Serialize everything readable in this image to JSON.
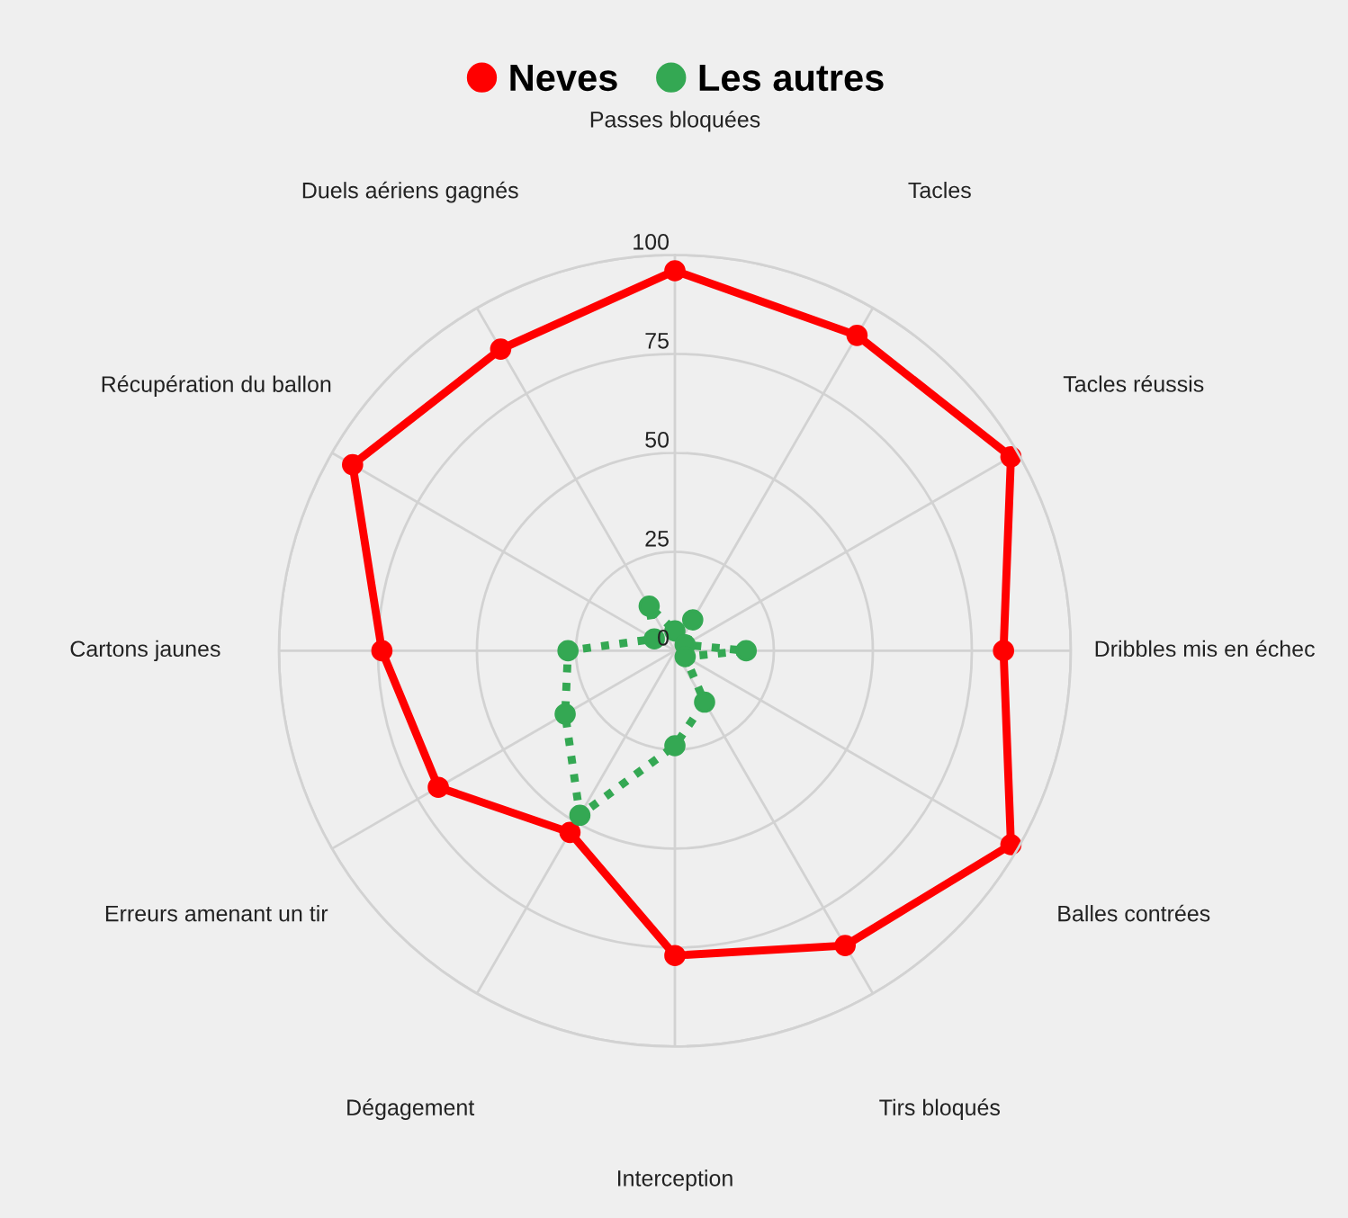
{
  "chart_data": {
    "type": "radar",
    "categories": [
      "Passes bloquées",
      "Tacles",
      "Tacles réussis",
      "Dribbles mis en échec",
      "Balles contrées",
      "Tirs bloqués",
      "Interception",
      "Dégagement",
      "Erreurs amenant un tir",
      "Cartons jaunes",
      "Récupération du ballon",
      "Duels aériens gagnés"
    ],
    "series": [
      {
        "name": "Neves",
        "color": "#ff0000",
        "line_style": "solid",
        "values": [
          96,
          92,
          98,
          83,
          98,
          86,
          77,
          53,
          69,
          74,
          94,
          88
        ]
      },
      {
        "name": "Les autres",
        "color": "#34a853",
        "line_style": "dotted",
        "values": [
          5,
          9,
          3,
          18,
          3,
          15,
          24,
          48,
          32,
          27,
          6,
          13
        ]
      }
    ],
    "ylim": [
      0,
      100
    ],
    "yticks": [
      0,
      25,
      50,
      75,
      100
    ],
    "grid": true,
    "legend": "top",
    "marker": "circle"
  }
}
